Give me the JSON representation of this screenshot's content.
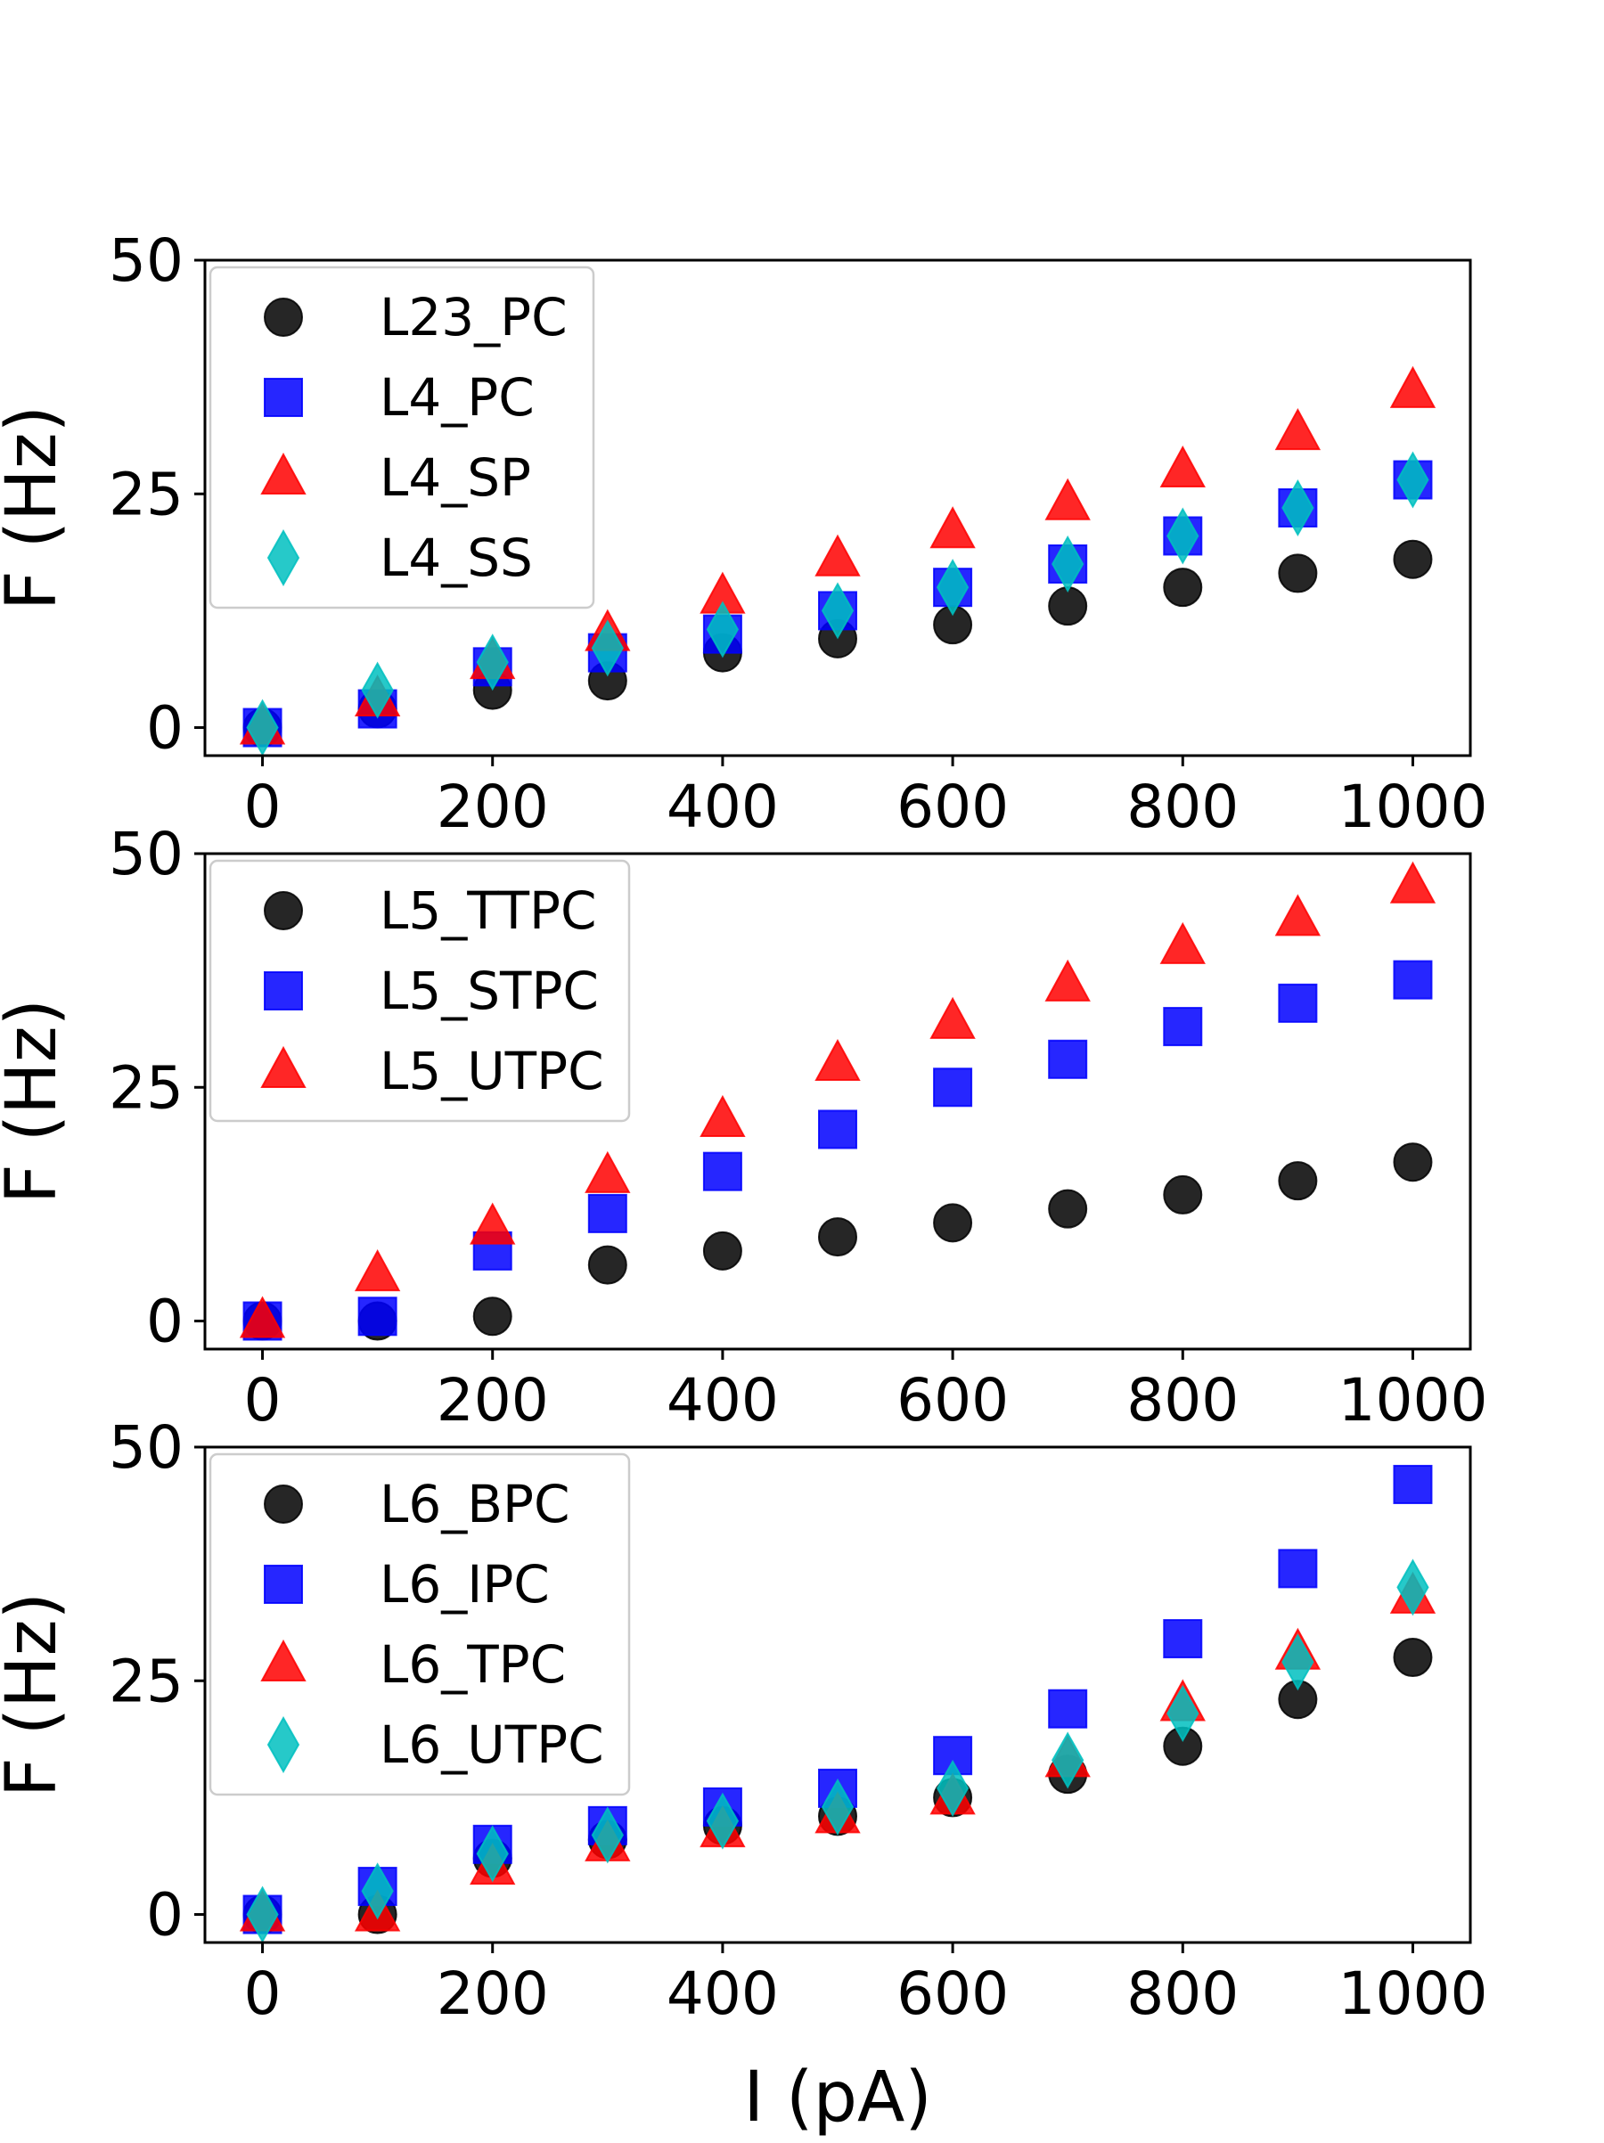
{
  "chart_data": [
    {
      "type": "scatter",
      "xlabel": "",
      "ylabel": "F (Hz)",
      "xlim": [
        -50,
        1050
      ],
      "ylim": [
        -3,
        50
      ],
      "xticks": [
        "0",
        "200",
        "400",
        "600",
        "800",
        "1000"
      ],
      "yticks": [
        "0",
        "25",
        "50"
      ],
      "grid": false,
      "legend_position": "top-left",
      "x": [
        0,
        100,
        200,
        300,
        400,
        500,
        600,
        700,
        800,
        900,
        1000
      ],
      "series": [
        {
          "name": "L23_PC",
          "marker": "circle",
          "color": "#000000",
          "values": [
            0,
            2,
            4,
            5,
            8,
            9.5,
            11,
            13,
            15,
            16.5,
            18
          ]
        },
        {
          "name": "L4_PC",
          "marker": "square",
          "color": "#0000ff",
          "values": [
            0,
            2,
            6.5,
            8,
            10,
            12.5,
            15,
            17.5,
            20.5,
            23.5,
            26.5
          ]
        },
        {
          "name": "L4_SP",
          "marker": "triangle",
          "color": "#ff0000",
          "values": [
            0,
            3,
            7,
            10,
            14,
            18,
            21,
            24,
            27.5,
            31.5,
            36
          ]
        },
        {
          "name": "L4_SS",
          "marker": "diamond",
          "color": "#00bfbf",
          "values": [
            0,
            4,
            7,
            8.5,
            10.5,
            12.5,
            15,
            17.5,
            20.5,
            23.5,
            26.5
          ]
        }
      ]
    },
    {
      "type": "scatter",
      "xlabel": "",
      "ylabel": "F (Hz)",
      "xlim": [
        -50,
        1050
      ],
      "ylim": [
        -3,
        50
      ],
      "xticks": [
        "0",
        "200",
        "400",
        "600",
        "800",
        "1000"
      ],
      "yticks": [
        "0",
        "25",
        "50"
      ],
      "grid": false,
      "legend_position": "top-left",
      "x": [
        0,
        100,
        200,
        300,
        400,
        500,
        600,
        700,
        800,
        900,
        1000
      ],
      "series": [
        {
          "name": "L5_TTPC",
          "marker": "circle",
          "color": "#000000",
          "values": [
            0,
            0,
            0.5,
            6,
            7.5,
            9,
            10.5,
            12,
            13.5,
            15,
            17
          ]
        },
        {
          "name": "L5_STPC",
          "marker": "square",
          "color": "#0000ff",
          "values": [
            0,
            0.5,
            7.5,
            11.5,
            16,
            20.5,
            25,
            28,
            31.5,
            34,
            36.5
          ]
        },
        {
          "name": "L5_UTPC",
          "marker": "triangle",
          "color": "#ff0000",
          "values": [
            0,
            5,
            10,
            15.5,
            21.5,
            27.5,
            32,
            36,
            40,
            43,
            46.5
          ]
        }
      ]
    },
    {
      "type": "scatter",
      "xlabel": "I (pA)",
      "ylabel": "F (Hz)",
      "xlim": [
        -50,
        1050
      ],
      "ylim": [
        -3,
        50
      ],
      "xticks": [
        "0",
        "200",
        "400",
        "600",
        "800",
        "1000"
      ],
      "yticks": [
        "0",
        "25",
        "50"
      ],
      "grid": false,
      "legend_position": "top-left",
      "x": [
        0,
        100,
        200,
        300,
        400,
        500,
        600,
        700,
        800,
        900,
        1000
      ],
      "series": [
        {
          "name": "L6_BPC",
          "marker": "circle",
          "color": "#000000",
          "values": [
            0,
            0,
            6,
            8,
            9.5,
            10.5,
            12.5,
            15,
            18,
            23,
            27.5
          ]
        },
        {
          "name": "L6_IPC",
          "marker": "square",
          "color": "#0000ff",
          "values": [
            0,
            3,
            7.5,
            9.5,
            11.5,
            13.5,
            17,
            22,
            29.5,
            37,
            46
          ]
        },
        {
          "name": "L6_TPC",
          "marker": "triangle",
          "color": "#ff0000",
          "values": [
            0,
            0,
            5,
            7.5,
            9,
            10.5,
            12.5,
            16.5,
            22.5,
            28,
            34
          ]
        },
        {
          "name": "L6_UTPC",
          "marker": "diamond",
          "color": "#00bfbf",
          "values": [
            0,
            2.5,
            6.5,
            8.5,
            10,
            11.5,
            13.5,
            16.5,
            21.5,
            27,
            35
          ]
        }
      ]
    }
  ]
}
